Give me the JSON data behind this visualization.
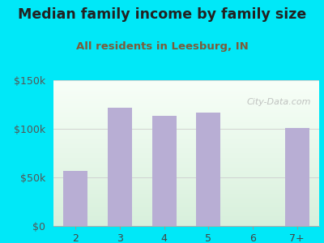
{
  "title": "Median family income by family size",
  "subtitle": "All residents in Leesburg, IN",
  "categories": [
    "2",
    "3",
    "4",
    "5",
    "6",
    "7+"
  ],
  "values": [
    57000,
    122000,
    113000,
    117000,
    0,
    101000
  ],
  "bar_color": "#b8aed4",
  "bar_width": 0.55,
  "ylim": [
    0,
    150000
  ],
  "yticks": [
    0,
    50000,
    100000,
    150000
  ],
  "ytick_labels": [
    "$0",
    "$50k",
    "$100k",
    "$150k"
  ],
  "background_outer": "#00e8f8",
  "title_color": "#222222",
  "subtitle_color": "#7b5c3a",
  "title_fontsize": 12.5,
  "subtitle_fontsize": 9.5,
  "watermark": "City-Data.com",
  "tick_fontsize": 9
}
